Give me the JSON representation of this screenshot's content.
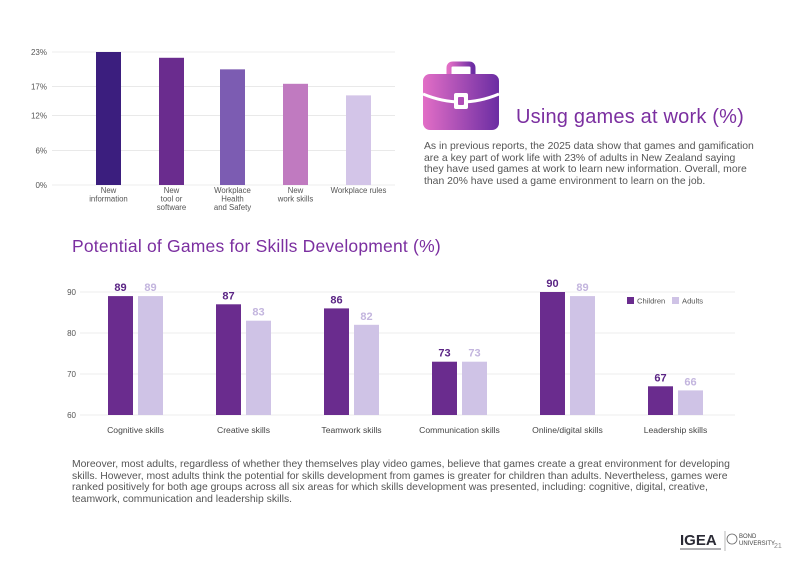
{
  "section1": {
    "title": "Using games at work (%)",
    "paragraph": "As in previous reports, the 2025 data show that games and gamification are a key part of work life with 23% of adults in New Zealand saying they have used games at work to learn new information. Overall, more than 20% have used a game environment to learn on the job."
  },
  "section2": {
    "title": "Potential of Games for Skills Development (%)",
    "paragraph": "Moreover, most adults, regardless of whether they themselves play video games, believe that games create a great environment for developing skills. However, most adults think the potential for skills development from games is greater for children than adults. Nevertheless, games were ranked positively for both age groups across all six areas for which skills development was presented, including: cognitive, digital, creative, teamwork, communication and leadership skills."
  },
  "footer": {
    "logo_primary": "IGEA",
    "logo_secondary_line1": "BOND",
    "logo_secondary_line2": "UNIVERSITY",
    "page_number": "21"
  },
  "icons": {
    "briefcase": "briefcase-icon"
  },
  "chart_data": [
    {
      "type": "bar",
      "categories": [
        [
          "New",
          "information"
        ],
        [
          "New",
          "tool or",
          "software"
        ],
        [
          "Workplace",
          "Health",
          "and Safety"
        ],
        [
          "New",
          "work skills"
        ],
        [
          "Workplace rules"
        ]
      ],
      "values": [
        23,
        22,
        20,
        17.5,
        15.5
      ],
      "colors": [
        "#3b1e7e",
        "#6a2c8e",
        "#7c5cb2",
        "#c07ac0",
        "#d3c5e8"
      ],
      "yticks": [
        "0%",
        "6%",
        "12%",
        "17%",
        "23%"
      ],
      "ylim": [
        0,
        23
      ],
      "grid": true
    },
    {
      "type": "bar",
      "categories": [
        "Cognitive skills",
        "Creative skills",
        "Teamwork skills",
        "Communication skills",
        "Online/digital skills",
        "Leadership skills"
      ],
      "series": [
        {
          "name": "Children",
          "values": [
            89,
            87,
            86,
            73,
            90,
            67
          ],
          "color": "#6a2c8e"
        },
        {
          "name": "Adults",
          "values": [
            89,
            83,
            82,
            73,
            89,
            66
          ],
          "color": "#cfc3e6"
        }
      ],
      "yticks": [
        "60",
        "70",
        "80",
        "90"
      ],
      "ylim": [
        60,
        90
      ],
      "grid": true,
      "legend": "top-right"
    }
  ]
}
